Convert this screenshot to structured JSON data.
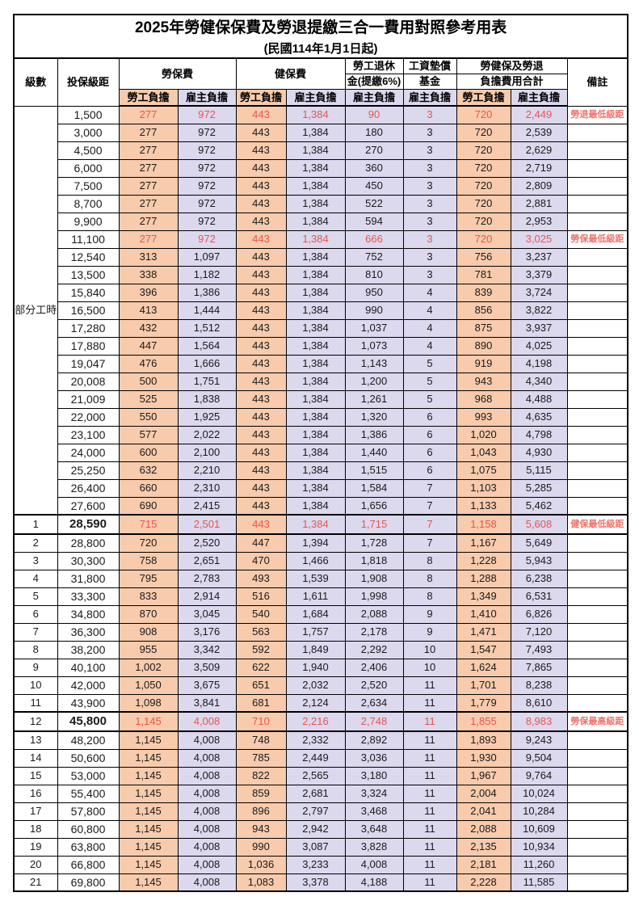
{
  "title": "2025年勞健保保費及勞退提繳三合一費用對照參考用表",
  "subtitle": "(民國114年1月1日起)",
  "colors": {
    "employee_col_bg": "#F8CBAD",
    "employer_col_bg": "#DCD8EE",
    "highlight_value_text": "#E8554D",
    "remark_text": "#F0736C",
    "border": "#000000"
  },
  "header": {
    "level": "級數",
    "salary_bracket": "投保級距",
    "labor_insurance_group": "勞保費",
    "health_insurance_group": "健保費",
    "pension_line1": "勞工退休",
    "pension_line2": "金(提繳6%)",
    "wage_fund_line1": "工資墊償",
    "wage_fund_line2": "基金",
    "total_line1": "勞健保及勞退",
    "total_line2": "負擔費用合計",
    "remark": "備註",
    "employee_label": "勞工負擔",
    "employer_label": "雇主負擔"
  },
  "part_time_label": "部分工時",
  "rows": [
    {
      "level": "",
      "salary": "1,500",
      "values": [
        "277",
        "972",
        "443",
        "1,384",
        "90",
        "3",
        "720",
        "2,449"
      ],
      "remark": "勞退最低級距",
      "highlight": true,
      "emphasis": false
    },
    {
      "level": "",
      "salary": "3,000",
      "values": [
        "277",
        "972",
        "443",
        "1,384",
        "180",
        "3",
        "720",
        "2,539"
      ],
      "remark": "",
      "highlight": false,
      "emphasis": false
    },
    {
      "level": "",
      "salary": "4,500",
      "values": [
        "277",
        "972",
        "443",
        "1,384",
        "270",
        "3",
        "720",
        "2,629"
      ],
      "remark": "",
      "highlight": false,
      "emphasis": false
    },
    {
      "level": "",
      "salary": "6,000",
      "values": [
        "277",
        "972",
        "443",
        "1,384",
        "360",
        "3",
        "720",
        "2,719"
      ],
      "remark": "",
      "highlight": false,
      "emphasis": false
    },
    {
      "level": "",
      "salary": "7,500",
      "values": [
        "277",
        "972",
        "443",
        "1,384",
        "450",
        "3",
        "720",
        "2,809"
      ],
      "remark": "",
      "highlight": false,
      "emphasis": false
    },
    {
      "level": "",
      "salary": "8,700",
      "values": [
        "277",
        "972",
        "443",
        "1,384",
        "522",
        "3",
        "720",
        "2,881"
      ],
      "remark": "",
      "highlight": false,
      "emphasis": false
    },
    {
      "level": "",
      "salary": "9,900",
      "values": [
        "277",
        "972",
        "443",
        "1,384",
        "594",
        "3",
        "720",
        "2,953"
      ],
      "remark": "",
      "highlight": false,
      "emphasis": false
    },
    {
      "level": "",
      "salary": "11,100",
      "values": [
        "277",
        "972",
        "443",
        "1,384",
        "666",
        "3",
        "720",
        "3,025"
      ],
      "remark": "勞保最低級距",
      "highlight": true,
      "emphasis": false
    },
    {
      "level": "",
      "salary": "12,540",
      "values": [
        "313",
        "1,097",
        "443",
        "1,384",
        "752",
        "3",
        "756",
        "3,237"
      ],
      "remark": "",
      "highlight": false,
      "emphasis": false
    },
    {
      "level": "",
      "salary": "13,500",
      "values": [
        "338",
        "1,182",
        "443",
        "1,384",
        "810",
        "3",
        "781",
        "3,379"
      ],
      "remark": "",
      "highlight": false,
      "emphasis": false
    },
    {
      "level": "",
      "salary": "15,840",
      "values": [
        "396",
        "1,386",
        "443",
        "1,384",
        "950",
        "4",
        "839",
        "3,724"
      ],
      "remark": "",
      "highlight": false,
      "emphasis": false
    },
    {
      "level": "",
      "salary": "16,500",
      "values": [
        "413",
        "1,444",
        "443",
        "1,384",
        "990",
        "4",
        "856",
        "3,822"
      ],
      "remark": "",
      "highlight": false,
      "emphasis": false
    },
    {
      "level": "",
      "salary": "17,280",
      "values": [
        "432",
        "1,512",
        "443",
        "1,384",
        "1,037",
        "4",
        "875",
        "3,937"
      ],
      "remark": "",
      "highlight": false,
      "emphasis": false
    },
    {
      "level": "",
      "salary": "17,880",
      "values": [
        "447",
        "1,564",
        "443",
        "1,384",
        "1,073",
        "4",
        "890",
        "4,025"
      ],
      "remark": "",
      "highlight": false,
      "emphasis": false
    },
    {
      "level": "",
      "salary": "19,047",
      "values": [
        "476",
        "1,666",
        "443",
        "1,384",
        "1,143",
        "5",
        "919",
        "4,198"
      ],
      "remark": "",
      "highlight": false,
      "emphasis": false
    },
    {
      "level": "",
      "salary": "20,008",
      "values": [
        "500",
        "1,751",
        "443",
        "1,384",
        "1,200",
        "5",
        "943",
        "4,340"
      ],
      "remark": "",
      "highlight": false,
      "emphasis": false
    },
    {
      "level": "",
      "salary": "21,009",
      "values": [
        "525",
        "1,838",
        "443",
        "1,384",
        "1,261",
        "5",
        "968",
        "4,488"
      ],
      "remark": "",
      "highlight": false,
      "emphasis": false
    },
    {
      "level": "",
      "salary": "22,000",
      "values": [
        "550",
        "1,925",
        "443",
        "1,384",
        "1,320",
        "6",
        "993",
        "4,635"
      ],
      "remark": "",
      "highlight": false,
      "emphasis": false
    },
    {
      "level": "",
      "salary": "23,100",
      "values": [
        "577",
        "2,022",
        "443",
        "1,384",
        "1,386",
        "6",
        "1,020",
        "4,798"
      ],
      "remark": "",
      "highlight": false,
      "emphasis": false
    },
    {
      "level": "",
      "salary": "24,000",
      "values": [
        "600",
        "2,100",
        "443",
        "1,384",
        "1,440",
        "6",
        "1,043",
        "4,930"
      ],
      "remark": "",
      "highlight": false,
      "emphasis": false
    },
    {
      "level": "",
      "salary": "25,250",
      "values": [
        "632",
        "2,210",
        "443",
        "1,384",
        "1,515",
        "6",
        "1,075",
        "5,115"
      ],
      "remark": "",
      "highlight": false,
      "emphasis": false
    },
    {
      "level": "",
      "salary": "26,400",
      "values": [
        "660",
        "2,310",
        "443",
        "1,384",
        "1,584",
        "7",
        "1,103",
        "5,285"
      ],
      "remark": "",
      "highlight": false,
      "emphasis": false
    },
    {
      "level": "",
      "salary": "27,600",
      "values": [
        "690",
        "2,415",
        "443",
        "1,384",
        "1,656",
        "7",
        "1,133",
        "5,462"
      ],
      "remark": "",
      "highlight": false,
      "emphasis": false
    },
    {
      "level": "1",
      "salary": "28,590",
      "values": [
        "715",
        "2,501",
        "443",
        "1,384",
        "1,715",
        "7",
        "1,158",
        "5,608"
      ],
      "remark": "健保最低級距",
      "highlight": true,
      "emphasis": true
    },
    {
      "level": "2",
      "salary": "28,800",
      "values": [
        "720",
        "2,520",
        "447",
        "1,394",
        "1,728",
        "7",
        "1,167",
        "5,649"
      ],
      "remark": "",
      "highlight": false,
      "emphasis": false
    },
    {
      "level": "3",
      "salary": "30,300",
      "values": [
        "758",
        "2,651",
        "470",
        "1,466",
        "1,818",
        "8",
        "1,228",
        "5,943"
      ],
      "remark": "",
      "highlight": false,
      "emphasis": false
    },
    {
      "level": "4",
      "salary": "31,800",
      "values": [
        "795",
        "2,783",
        "493",
        "1,539",
        "1,908",
        "8",
        "1,288",
        "6,238"
      ],
      "remark": "",
      "highlight": false,
      "emphasis": false
    },
    {
      "level": "5",
      "salary": "33,300",
      "values": [
        "833",
        "2,914",
        "516",
        "1,611",
        "1,998",
        "8",
        "1,349",
        "6,531"
      ],
      "remark": "",
      "highlight": false,
      "emphasis": false
    },
    {
      "level": "6",
      "salary": "34,800",
      "values": [
        "870",
        "3,045",
        "540",
        "1,684",
        "2,088",
        "9",
        "1,410",
        "6,826"
      ],
      "remark": "",
      "highlight": false,
      "emphasis": false
    },
    {
      "level": "7",
      "salary": "36,300",
      "values": [
        "908",
        "3,176",
        "563",
        "1,757",
        "2,178",
        "9",
        "1,471",
        "7,120"
      ],
      "remark": "",
      "highlight": false,
      "emphasis": false
    },
    {
      "level": "8",
      "salary": "38,200",
      "values": [
        "955",
        "3,342",
        "592",
        "1,849",
        "2,292",
        "10",
        "1,547",
        "7,493"
      ],
      "remark": "",
      "highlight": false,
      "emphasis": false
    },
    {
      "level": "9",
      "salary": "40,100",
      "values": [
        "1,002",
        "3,509",
        "622",
        "1,940",
        "2,406",
        "10",
        "1,624",
        "7,865"
      ],
      "remark": "",
      "highlight": false,
      "emphasis": false
    },
    {
      "level": "10",
      "salary": "42,000",
      "values": [
        "1,050",
        "3,675",
        "651",
        "2,032",
        "2,520",
        "11",
        "1,701",
        "8,238"
      ],
      "remark": "",
      "highlight": false,
      "emphasis": false
    },
    {
      "level": "11",
      "salary": "43,900",
      "values": [
        "1,098",
        "3,841",
        "681",
        "2,124",
        "2,634",
        "11",
        "1,779",
        "8,610"
      ],
      "remark": "",
      "highlight": false,
      "emphasis": false
    },
    {
      "level": "12",
      "salary": "45,800",
      "values": [
        "1,145",
        "4,008",
        "710",
        "2,216",
        "2,748",
        "11",
        "1,855",
        "8,983"
      ],
      "remark": "勞保最高級距",
      "highlight": true,
      "emphasis": true
    },
    {
      "level": "13",
      "salary": "48,200",
      "values": [
        "1,145",
        "4,008",
        "748",
        "2,332",
        "2,892",
        "11",
        "1,893",
        "9,243"
      ],
      "remark": "",
      "highlight": false,
      "emphasis": false
    },
    {
      "level": "14",
      "salary": "50,600",
      "values": [
        "1,145",
        "4,008",
        "785",
        "2,449",
        "3,036",
        "11",
        "1,930",
        "9,504"
      ],
      "remark": "",
      "highlight": false,
      "emphasis": false
    },
    {
      "level": "15",
      "salary": "53,000",
      "values": [
        "1,145",
        "4,008",
        "822",
        "2,565",
        "3,180",
        "11",
        "1,967",
        "9,764"
      ],
      "remark": "",
      "highlight": false,
      "emphasis": false
    },
    {
      "level": "16",
      "salary": "55,400",
      "values": [
        "1,145",
        "4,008",
        "859",
        "2,681",
        "3,324",
        "11",
        "2,004",
        "10,024"
      ],
      "remark": "",
      "highlight": false,
      "emphasis": false
    },
    {
      "level": "17",
      "salary": "57,800",
      "values": [
        "1,145",
        "4,008",
        "896",
        "2,797",
        "3,468",
        "11",
        "2,041",
        "10,284"
      ],
      "remark": "",
      "highlight": false,
      "emphasis": false
    },
    {
      "level": "18",
      "salary": "60,800",
      "values": [
        "1,145",
        "4,008",
        "943",
        "2,942",
        "3,648",
        "11",
        "2,088",
        "10,609"
      ],
      "remark": "",
      "highlight": false,
      "emphasis": false
    },
    {
      "level": "19",
      "salary": "63,800",
      "values": [
        "1,145",
        "4,008",
        "990",
        "3,087",
        "3,828",
        "11",
        "2,135",
        "10,934"
      ],
      "remark": "",
      "highlight": false,
      "emphasis": false
    },
    {
      "level": "20",
      "salary": "66,800",
      "values": [
        "1,145",
        "4,008",
        "1,036",
        "3,233",
        "4,008",
        "11",
        "2,181",
        "11,260"
      ],
      "remark": "",
      "highlight": false,
      "emphasis": false
    },
    {
      "level": "21",
      "salary": "69,800",
      "values": [
        "1,145",
        "4,008",
        "1,083",
        "3,378",
        "4,188",
        "11",
        "2,228",
        "11,585"
      ],
      "remark": "",
      "highlight": false,
      "emphasis": false
    }
  ]
}
